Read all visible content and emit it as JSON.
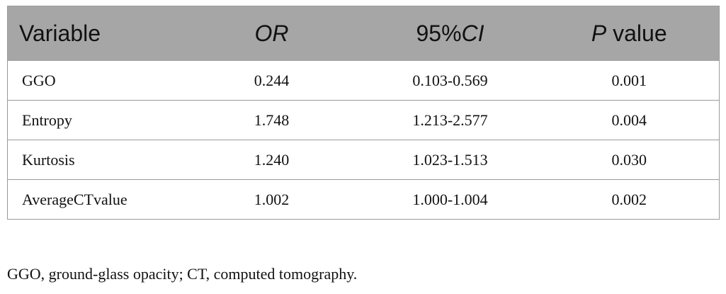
{
  "table": {
    "headers": [
      {
        "text": "Variable",
        "italic": false,
        "suffix": ""
      },
      {
        "text": "OR",
        "italic": true,
        "suffix": ""
      },
      {
        "text": "95%",
        "italic": false,
        "suffix": "CI"
      },
      {
        "text": "P",
        "italic": true,
        "suffix": " value"
      }
    ],
    "rows": [
      {
        "variable": "GGO",
        "or": "0.244",
        "ci": "0.103-0.569",
        "p": "0.001"
      },
      {
        "variable": "Entropy",
        "or": "1.748",
        "ci": "1.213-2.577",
        "p": "0.004"
      },
      {
        "variable": "Kurtosis",
        "or": "1.240",
        "ci": "1.023-1.513",
        "p": "0.030"
      },
      {
        "variable": "AverageCTvalue",
        "or": "1.002",
        "ci": "1.000-1.004",
        "p": "0.002"
      }
    ]
  },
  "footnote": "GGO, ground-glass opacity; CT, computed tomography.",
  "colors": {
    "header_bg": "#a6a6a6",
    "border": "#9a9a9a",
    "text": "#111111"
  }
}
